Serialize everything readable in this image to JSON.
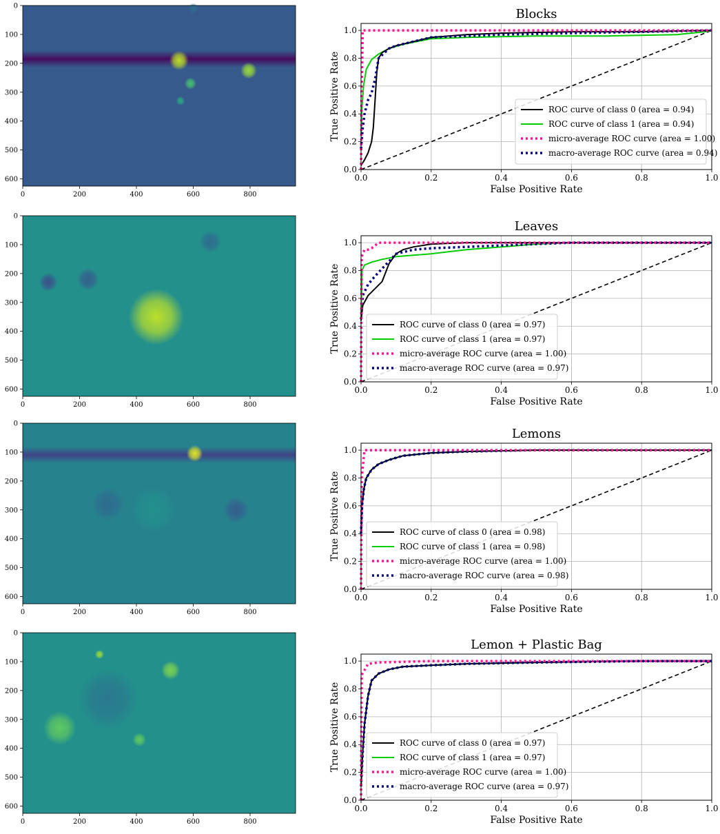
{
  "colors": {
    "class0": "#000000",
    "class1": "#00cc00",
    "micro": "#ff1493",
    "macro": "#000080",
    "diagonal": "#000000",
    "grid": "#b0b0b0"
  },
  "heatmap_axes": {
    "x_ticks": [
      "0",
      "200",
      "400",
      "600",
      "800"
    ],
    "x_tick_values": [
      0,
      200,
      400,
      600,
      800
    ],
    "x_range": [
      0,
      960
    ],
    "y_ticks": [
      "0",
      "100",
      "200",
      "300",
      "400",
      "500",
      "600"
    ],
    "y_tick_values": [
      0,
      100,
      200,
      300,
      400,
      500,
      600
    ],
    "y_range": [
      0,
      625
    ]
  },
  "panels": [
    {
      "heatmap": {
        "colormap": "viridis",
        "blobs": [
          {
            "x": 550,
            "y": 190,
            "r": 26,
            "level": 0.9
          },
          {
            "x": 795,
            "y": 225,
            "r": 22,
            "level": 0.85
          },
          {
            "x": 590,
            "y": 270,
            "r": 16,
            "level": 0.7
          },
          {
            "x": 555,
            "y": 330,
            "r": 12,
            "level": 0.6
          },
          {
            "x": 600,
            "y": 10,
            "r": 14,
            "level": 0.35
          }
        ],
        "band": {
          "y": 185,
          "level": -0.25
        }
      }
    },
    {
      "heatmap": {
        "colormap": "viridis",
        "blobs": [
          {
            "x": 470,
            "y": 350,
            "r": 75,
            "level": 0.9
          },
          {
            "x": 660,
            "y": 90,
            "r": 30,
            "level": 0.35
          },
          {
            "x": 230,
            "y": 220,
            "r": 30,
            "level": 0.3
          },
          {
            "x": 90,
            "y": 230,
            "r": 25,
            "level": 0.25
          }
        ],
        "band": null
      }
    },
    {
      "heatmap": {
        "colormap": "viridis",
        "blobs": [
          {
            "x": 605,
            "y": 105,
            "r": 22,
            "level": 0.95
          },
          {
            "x": 460,
            "y": 300,
            "r": 60,
            "level": 0.5
          },
          {
            "x": 300,
            "y": 280,
            "r": 45,
            "level": 0.35
          },
          {
            "x": 750,
            "y": 300,
            "r": 35,
            "level": 0.3
          }
        ],
        "band": {
          "y": 110,
          "level": -0.25
        }
      }
    },
    {
      "heatmap": {
        "colormap": "viridis",
        "blobs": [
          {
            "x": 130,
            "y": 330,
            "r": 45,
            "level": 0.75
          },
          {
            "x": 520,
            "y": 130,
            "r": 25,
            "level": 0.8
          },
          {
            "x": 410,
            "y": 370,
            "r": 18,
            "level": 0.75
          },
          {
            "x": 270,
            "y": 75,
            "r": 12,
            "level": 0.85
          },
          {
            "x": 300,
            "y": 230,
            "r": 80,
            "level": 0.4
          }
        ],
        "band": null
      }
    }
  ],
  "roc_axes": {
    "xlabel": "False Positive Rate",
    "ylabel": "True Positive Rate",
    "x_ticks": [
      "0.0",
      "0.2",
      "0.4",
      "0.6",
      "0.8",
      "1.0"
    ],
    "y_ticks": [
      "0.0",
      "0.2",
      "0.4",
      "0.6",
      "0.8",
      "1.0"
    ],
    "tick_values": [
      0,
      0.2,
      0.4,
      0.6,
      0.8,
      1.0
    ],
    "xlim": [
      0,
      1
    ],
    "ylim": [
      0,
      1.05
    ]
  },
  "chart_data": [
    {
      "type": "line",
      "title": "Blocks",
      "xlabel": "False Positive Rate",
      "ylabel": "True Positive Rate",
      "xlim": [
        0,
        1
      ],
      "ylim": [
        0,
        1.05
      ],
      "grid": true,
      "legend_placement": "lower-right",
      "series": [
        {
          "name": "ROC curve of class 0 (area = 0.94)",
          "x": [
            0,
            0.01,
            0.02,
            0.03,
            0.035,
            0.04,
            0.045,
            0.05,
            0.06,
            0.08,
            0.1,
            0.15,
            0.2,
            0.3,
            0.4,
            0.6,
            0.8,
            1.0
          ],
          "y": [
            0.03,
            0.07,
            0.12,
            0.2,
            0.3,
            0.5,
            0.7,
            0.8,
            0.84,
            0.87,
            0.89,
            0.92,
            0.95,
            0.97,
            0.98,
            0.99,
            0.99,
            1.0
          ]
        },
        {
          "name": "ROC curve of class 1 (area = 0.94)",
          "x": [
            0,
            0.003,
            0.007,
            0.015,
            0.03,
            0.05,
            0.08,
            0.12,
            0.2,
            0.3,
            0.5,
            0.7,
            0.9,
            0.98,
            1.0
          ],
          "y": [
            0.25,
            0.45,
            0.6,
            0.72,
            0.79,
            0.83,
            0.87,
            0.9,
            0.94,
            0.95,
            0.96,
            0.96,
            0.97,
            0.99,
            1.0
          ]
        },
        {
          "name": "micro-average ROC curve (area = 1.00)",
          "x": [
            0,
            0.002,
            0.005,
            0.02,
            0.1,
            0.5,
            1.0
          ],
          "y": [
            0.0,
            0.6,
            1.0,
            1.0,
            1.0,
            1.0,
            1.0
          ]
        },
        {
          "name": "macro-average ROC curve (area = 0.94)",
          "x": [
            0,
            0.005,
            0.01,
            0.02,
            0.03,
            0.04,
            0.05,
            0.08,
            0.1,
            0.15,
            0.2,
            0.4,
            0.6,
            0.8,
            1.0
          ],
          "y": [
            0.15,
            0.3,
            0.4,
            0.5,
            0.55,
            0.65,
            0.8,
            0.87,
            0.89,
            0.92,
            0.95,
            0.97,
            0.98,
            0.99,
            1.0
          ]
        },
        {
          "name": "",
          "x": [
            0,
            1
          ],
          "y": [
            0,
            1
          ]
        }
      ]
    },
    {
      "type": "line",
      "title": "Leaves",
      "xlabel": "False Positive Rate",
      "ylabel": "True Positive Rate",
      "xlim": [
        0,
        1
      ],
      "ylim": [
        0,
        1.05
      ],
      "grid": true,
      "legend_placement": "lower-left",
      "series": [
        {
          "name": "ROC curve of class 0 (area = 0.97)",
          "x": [
            0,
            0.005,
            0.02,
            0.04,
            0.06,
            0.08,
            0.1,
            0.12,
            0.15,
            0.2,
            0.3,
            0.5,
            0.7,
            1.0
          ],
          "y": [
            0.44,
            0.55,
            0.62,
            0.67,
            0.72,
            0.85,
            0.92,
            0.95,
            0.97,
            0.99,
            1.0,
            1.0,
            1.0,
            1.0
          ]
        },
        {
          "name": "ROC curve of class 1 (area = 0.97)",
          "x": [
            0,
            0.003,
            0.01,
            0.03,
            0.06,
            0.1,
            0.2,
            0.3,
            0.4,
            0.5,
            0.6,
            0.8,
            1.0
          ],
          "y": [
            0.45,
            0.8,
            0.84,
            0.86,
            0.88,
            0.9,
            0.92,
            0.95,
            0.97,
            0.99,
            1.0,
            1.0,
            1.0
          ]
        },
        {
          "name": "micro-average ROC curve (area = 1.00)",
          "x": [
            0,
            0.002,
            0.01,
            0.02,
            0.03,
            0.05,
            0.2,
            1.0
          ],
          "y": [
            0.0,
            0.9,
            0.95,
            0.95,
            0.96,
            1.0,
            1.0,
            1.0
          ]
        },
        {
          "name": "macro-average ROC curve (area = 0.97)",
          "x": [
            0,
            0.005,
            0.02,
            0.04,
            0.07,
            0.1,
            0.15,
            0.2,
            0.3,
            0.4,
            0.5,
            0.6,
            1.0
          ],
          "y": [
            0.45,
            0.62,
            0.7,
            0.76,
            0.84,
            0.92,
            0.95,
            0.96,
            0.97,
            0.98,
            0.99,
            1.0,
            1.0
          ]
        },
        {
          "name": "",
          "x": [
            0,
            1
          ],
          "y": [
            0,
            1
          ]
        }
      ]
    },
    {
      "type": "line",
      "title": "Lemons",
      "xlabel": "False Positive Rate",
      "ylabel": "True Positive Rate",
      "xlim": [
        0,
        1
      ],
      "ylim": [
        0,
        1.05
      ],
      "grid": true,
      "legend_placement": "lower-left",
      "series": [
        {
          "name": "ROC curve of class 0 (area = 0.98)",
          "x": [
            0,
            0.003,
            0.008,
            0.015,
            0.03,
            0.05,
            0.08,
            0.12,
            0.2,
            0.3,
            0.5,
            1.0
          ],
          "y": [
            0.4,
            0.6,
            0.72,
            0.8,
            0.86,
            0.9,
            0.93,
            0.96,
            0.98,
            0.99,
            1.0,
            1.0
          ]
        },
        {
          "name": "ROC curve of class 1 (area = 0.98)",
          "x": [
            0,
            0.003,
            0.008,
            0.015,
            0.03,
            0.05,
            0.08,
            0.12,
            0.2,
            0.3,
            0.5,
            1.0
          ],
          "y": [
            0.4,
            0.6,
            0.72,
            0.8,
            0.86,
            0.9,
            0.93,
            0.96,
            0.98,
            0.99,
            1.0,
            1.0
          ]
        },
        {
          "name": "micro-average ROC curve (area = 1.00)",
          "x": [
            0,
            0.002,
            0.01,
            0.1,
            1.0
          ],
          "y": [
            0.0,
            0.8,
            1.0,
            1.0,
            1.0
          ]
        },
        {
          "name": "macro-average ROC curve (area = 0.98)",
          "x": [
            0,
            0.003,
            0.008,
            0.015,
            0.03,
            0.05,
            0.08,
            0.12,
            0.2,
            0.3,
            0.5,
            1.0
          ],
          "y": [
            0.4,
            0.6,
            0.72,
            0.8,
            0.86,
            0.9,
            0.93,
            0.96,
            0.98,
            0.99,
            1.0,
            1.0
          ]
        },
        {
          "name": "",
          "x": [
            0,
            1
          ],
          "y": [
            0,
            1
          ]
        }
      ]
    },
    {
      "type": "line",
      "title": "Lemon + Plastic Bag",
      "xlabel": "False Positive Rate",
      "ylabel": "True Positive Rate",
      "xlim": [
        0,
        1
      ],
      "ylim": [
        0,
        1.05
      ],
      "grid": true,
      "legend_placement": "lower-left",
      "series": [
        {
          "name": "ROC curve of class 0 (area = 0.97)",
          "x": [
            0,
            0.005,
            0.01,
            0.02,
            0.03,
            0.05,
            0.08,
            0.12,
            0.2,
            0.3,
            0.5,
            0.8,
            1.0
          ],
          "y": [
            0.1,
            0.35,
            0.55,
            0.75,
            0.86,
            0.91,
            0.94,
            0.96,
            0.97,
            0.98,
            0.99,
            1.0,
            1.0
          ]
        },
        {
          "name": "ROC curve of class 1 (area = 0.97)",
          "x": [
            0,
            0.005,
            0.01,
            0.02,
            0.03,
            0.05,
            0.08,
            0.12,
            0.2,
            0.3,
            0.5,
            0.8,
            1.0
          ],
          "y": [
            0.1,
            0.35,
            0.55,
            0.75,
            0.86,
            0.91,
            0.94,
            0.96,
            0.97,
            0.98,
            0.99,
            1.0,
            1.0
          ]
        },
        {
          "name": "micro-average ROC curve (area = 1.00)",
          "x": [
            0,
            0.002,
            0.02,
            0.05,
            0.2,
            1.0
          ],
          "y": [
            0.0,
            0.9,
            0.98,
            0.99,
            1.0,
            1.0
          ]
        },
        {
          "name": "macro-average ROC curve (area = 0.97)",
          "x": [
            0,
            0.005,
            0.01,
            0.02,
            0.03,
            0.05,
            0.08,
            0.12,
            0.2,
            0.3,
            0.5,
            0.8,
            1.0
          ],
          "y": [
            0.1,
            0.35,
            0.55,
            0.75,
            0.86,
            0.91,
            0.94,
            0.96,
            0.97,
            0.98,
            0.99,
            1.0,
            1.0
          ]
        },
        {
          "name": "",
          "x": [
            0,
            1
          ],
          "y": [
            0,
            1
          ]
        }
      ]
    }
  ]
}
